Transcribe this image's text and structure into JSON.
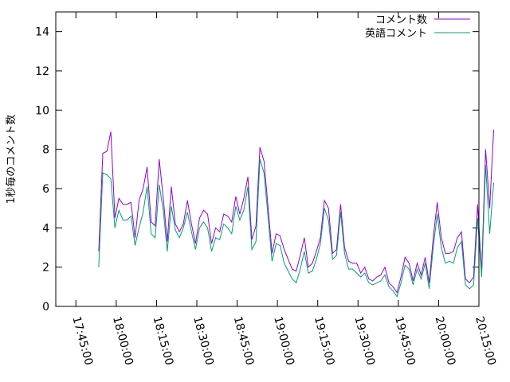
{
  "chart_data": {
    "type": "line",
    "ylabel": "1秒毎のコメント数",
    "xlabel": "",
    "title": "",
    "ylim": [
      0,
      15
    ],
    "xlim": [
      "17:37:30",
      "20:15:00"
    ],
    "grid": false,
    "legend_position": "top-right",
    "y_ticks": [
      {
        "value": 0,
        "label": "0"
      },
      {
        "value": 2,
        "label": "2"
      },
      {
        "value": 4,
        "label": "4"
      },
      {
        "value": 6,
        "label": "6"
      },
      {
        "value": 8,
        "label": "8"
      },
      {
        "value": 10,
        "label": "10"
      },
      {
        "value": 12,
        "label": "12"
      },
      {
        "value": 14,
        "label": "14"
      }
    ],
    "x_ticks": [
      {
        "value": "17:45:00",
        "label": "17:45:00"
      },
      {
        "value": "18:00:00",
        "label": "18:00:00"
      },
      {
        "value": "18:15:00",
        "label": "18:15:00"
      },
      {
        "value": "18:30:00",
        "label": "18:30:00"
      },
      {
        "value": "18:45:00",
        "label": "18:45:00"
      },
      {
        "value": "19:00:00",
        "label": "19:00:00"
      },
      {
        "value": "19:15:00",
        "label": "19:15:00"
      },
      {
        "value": "19:30:00",
        "label": "19:30:00"
      },
      {
        "value": "19:45:00",
        "label": "19:45:00"
      },
      {
        "value": "20:00:00",
        "label": "20:00:00"
      },
      {
        "value": "20:15:00",
        "label": "20:15:00"
      }
    ],
    "series": [
      {
        "name": "コメント数",
        "color": "#9400d3",
        "points": [
          [
            "17:53:30",
            2.8
          ],
          [
            "17:55:00",
            7.8
          ],
          [
            "17:56:30",
            7.9
          ],
          [
            "17:58:00",
            8.9
          ],
          [
            "17:59:30",
            4.5
          ],
          [
            "18:01:00",
            5.5
          ],
          [
            "18:02:30",
            5.2
          ],
          [
            "18:04:00",
            5.2
          ],
          [
            "18:05:30",
            5.3
          ],
          [
            "18:07:00",
            3.5
          ],
          [
            "18:08:30",
            5.4
          ],
          [
            "18:10:00",
            6.0
          ],
          [
            "18:11:30",
            7.1
          ],
          [
            "18:13:00",
            4.3
          ],
          [
            "18:14:30",
            4.1
          ],
          [
            "18:16:00",
            7.5
          ],
          [
            "18:17:30",
            5.5
          ],
          [
            "18:19:00",
            3.3
          ],
          [
            "18:20:30",
            6.1
          ],
          [
            "18:22:00",
            4.2
          ],
          [
            "18:23:30",
            3.8
          ],
          [
            "18:25:00",
            4.2
          ],
          [
            "18:26:30",
            5.4
          ],
          [
            "18:28:00",
            4.2
          ],
          [
            "18:29:30",
            3.2
          ],
          [
            "18:31:00",
            4.5
          ],
          [
            "18:32:30",
            4.9
          ],
          [
            "18:34:00",
            4.7
          ],
          [
            "18:35:30",
            3.2
          ],
          [
            "18:37:00",
            4.0
          ],
          [
            "18:38:30",
            3.8
          ],
          [
            "18:40:00",
            4.7
          ],
          [
            "18:41:30",
            4.6
          ],
          [
            "18:43:00",
            4.3
          ],
          [
            "18:44:30",
            5.6
          ],
          [
            "18:46:00",
            4.7
          ],
          [
            "18:47:30",
            5.5
          ],
          [
            "18:49:00",
            6.6
          ],
          [
            "18:50:30",
            3.4
          ],
          [
            "18:52:00",
            4.1
          ],
          [
            "18:53:30",
            8.1
          ],
          [
            "18:55:00",
            7.4
          ],
          [
            "18:56:30",
            5.1
          ],
          [
            "18:58:00",
            2.7
          ],
          [
            "18:59:30",
            3.7
          ],
          [
            "19:01:00",
            3.6
          ],
          [
            "19:02:30",
            2.9
          ],
          [
            "19:04:00",
            2.4
          ],
          [
            "19:05:30",
            1.9
          ],
          [
            "19:07:00",
            1.8
          ],
          [
            "19:08:30",
            2.6
          ],
          [
            "19:10:00",
            3.5
          ],
          [
            "19:11:30",
            2.0
          ],
          [
            "19:13:00",
            2.2
          ],
          [
            "19:14:30",
            2.8
          ],
          [
            "19:16:00",
            3.5
          ],
          [
            "19:17:30",
            5.4
          ],
          [
            "19:19:00",
            5.0
          ],
          [
            "19:20:30",
            2.7
          ],
          [
            "19:22:00",
            2.9
          ],
          [
            "19:23:30",
            5.2
          ],
          [
            "19:25:00",
            3.0
          ],
          [
            "19:26:30",
            2.3
          ],
          [
            "19:28:00",
            2.2
          ],
          [
            "19:29:30",
            2.2
          ],
          [
            "19:31:00",
            1.7
          ],
          [
            "19:32:30",
            2.0
          ],
          [
            "19:34:00",
            1.4
          ],
          [
            "19:35:30",
            1.3
          ],
          [
            "19:37:00",
            1.5
          ],
          [
            "19:38:30",
            1.6
          ],
          [
            "19:40:00",
            2.0
          ],
          [
            "19:41:30",
            1.2
          ],
          [
            "19:43:00",
            1.0
          ],
          [
            "19:44:30",
            0.7
          ],
          [
            "19:46:00",
            1.5
          ],
          [
            "19:47:30",
            2.5
          ],
          [
            "19:49:00",
            2.2
          ],
          [
            "19:50:30",
            1.3
          ],
          [
            "19:52:00",
            2.2
          ],
          [
            "19:53:30",
            1.6
          ],
          [
            "19:55:00",
            2.5
          ],
          [
            "19:56:30",
            1.2
          ],
          [
            "19:58:00",
            3.5
          ],
          [
            "19:59:30",
            5.3
          ],
          [
            "20:01:00",
            3.5
          ],
          [
            "20:02:30",
            2.7
          ],
          [
            "20:04:00",
            2.7
          ],
          [
            "20:05:30",
            2.8
          ],
          [
            "20:07:00",
            3.5
          ],
          [
            "20:08:30",
            3.8
          ],
          [
            "20:10:00",
            1.4
          ],
          [
            "20:11:30",
            1.2
          ],
          [
            "20:13:00",
            1.5
          ],
          [
            "20:14:30",
            5.2
          ],
          [
            "20:16:00",
            1.8
          ],
          [
            "20:17:30",
            8.0
          ],
          [
            "20:19:00",
            5.0
          ],
          [
            "20:20:30",
            9.0
          ]
        ]
      },
      {
        "name": "英語コメント",
        "color": "#009e73",
        "points": [
          [
            "17:53:30",
            2.0
          ],
          [
            "17:55:00",
            6.8
          ],
          [
            "17:56:30",
            6.7
          ],
          [
            "17:58:00",
            6.5
          ],
          [
            "17:59:30",
            4.0
          ],
          [
            "18:01:00",
            4.9
          ],
          [
            "18:02:30",
            4.4
          ],
          [
            "18:04:00",
            4.4
          ],
          [
            "18:05:30",
            4.6
          ],
          [
            "18:07:00",
            3.1
          ],
          [
            "18:08:30",
            4.0
          ],
          [
            "18:10:00",
            4.8
          ],
          [
            "18:11:30",
            6.1
          ],
          [
            "18:13:00",
            3.7
          ],
          [
            "18:14:30",
            3.5
          ],
          [
            "18:16:00",
            6.2
          ],
          [
            "18:17:30",
            4.9
          ],
          [
            "18:19:00",
            2.8
          ],
          [
            "18:20:30",
            5.1
          ],
          [
            "18:22:00",
            3.9
          ],
          [
            "18:23:30",
            3.5
          ],
          [
            "18:25:00",
            4.0
          ],
          [
            "18:26:30",
            4.8
          ],
          [
            "18:28:00",
            3.8
          ],
          [
            "18:29:30",
            2.9
          ],
          [
            "18:31:00",
            4.0
          ],
          [
            "18:32:30",
            4.3
          ],
          [
            "18:34:00",
            4.0
          ],
          [
            "18:35:30",
            2.8
          ],
          [
            "18:37:00",
            3.5
          ],
          [
            "18:38:30",
            3.4
          ],
          [
            "18:40:00",
            4.2
          ],
          [
            "18:41:30",
            4.0
          ],
          [
            "18:43:00",
            3.7
          ],
          [
            "18:44:30",
            5.1
          ],
          [
            "18:46:00",
            4.4
          ],
          [
            "18:47:30",
            4.9
          ],
          [
            "18:49:00",
            6.1
          ],
          [
            "18:50:30",
            2.9
          ],
          [
            "18:52:00",
            3.3
          ],
          [
            "18:53:30",
            7.5
          ],
          [
            "18:55:00",
            6.8
          ],
          [
            "18:56:30",
            4.6
          ],
          [
            "18:58:00",
            2.3
          ],
          [
            "18:59:30",
            3.2
          ],
          [
            "19:01:00",
            3.1
          ],
          [
            "19:02:30",
            2.2
          ],
          [
            "19:04:00",
            1.8
          ],
          [
            "19:05:30",
            1.4
          ],
          [
            "19:07:00",
            1.2
          ],
          [
            "19:08:30",
            1.9
          ],
          [
            "19:10:00",
            2.8
          ],
          [
            "19:11:30",
            1.7
          ],
          [
            "19:13:00",
            1.8
          ],
          [
            "19:14:30",
            2.4
          ],
          [
            "19:16:00",
            3.2
          ],
          [
            "19:17:30",
            5.0
          ],
          [
            "19:19:00",
            4.4
          ],
          [
            "19:20:30",
            2.4
          ],
          [
            "19:22:00",
            2.6
          ],
          [
            "19:23:30",
            4.8
          ],
          [
            "19:25:00",
            2.7
          ],
          [
            "19:26:30",
            1.9
          ],
          [
            "19:28:00",
            1.9
          ],
          [
            "19:29:30",
            1.7
          ],
          [
            "19:31:00",
            1.5
          ],
          [
            "19:32:30",
            1.7
          ],
          [
            "19:34:00",
            1.2
          ],
          [
            "19:35:30",
            1.1
          ],
          [
            "19:37:00",
            1.2
          ],
          [
            "19:38:30",
            1.3
          ],
          [
            "19:40:00",
            1.6
          ],
          [
            "19:41:30",
            1.0
          ],
          [
            "19:43:00",
            0.8
          ],
          [
            "19:44:30",
            0.5
          ],
          [
            "19:46:00",
            1.2
          ],
          [
            "19:47:30",
            2.1
          ],
          [
            "19:49:00",
            1.9
          ],
          [
            "19:50:30",
            1.1
          ],
          [
            "19:52:00",
            1.9
          ],
          [
            "19:53:30",
            1.4
          ],
          [
            "19:55:00",
            2.2
          ],
          [
            "19:56:30",
            0.9
          ],
          [
            "19:58:00",
            3.0
          ],
          [
            "19:59:30",
            4.7
          ],
          [
            "20:01:00",
            3.0
          ],
          [
            "20:02:30",
            2.2
          ],
          [
            "20:04:00",
            2.3
          ],
          [
            "20:05:30",
            2.2
          ],
          [
            "20:07:00",
            3.0
          ],
          [
            "20:08:30",
            3.3
          ],
          [
            "20:10:00",
            1.1
          ],
          [
            "20:11:30",
            0.9
          ],
          [
            "20:13:00",
            1.1
          ],
          [
            "20:14:30",
            4.5
          ],
          [
            "20:16:00",
            1.5
          ],
          [
            "20:17:30",
            7.2
          ],
          [
            "20:19:00",
            3.7
          ],
          [
            "20:20:30",
            6.3
          ]
        ]
      }
    ]
  }
}
